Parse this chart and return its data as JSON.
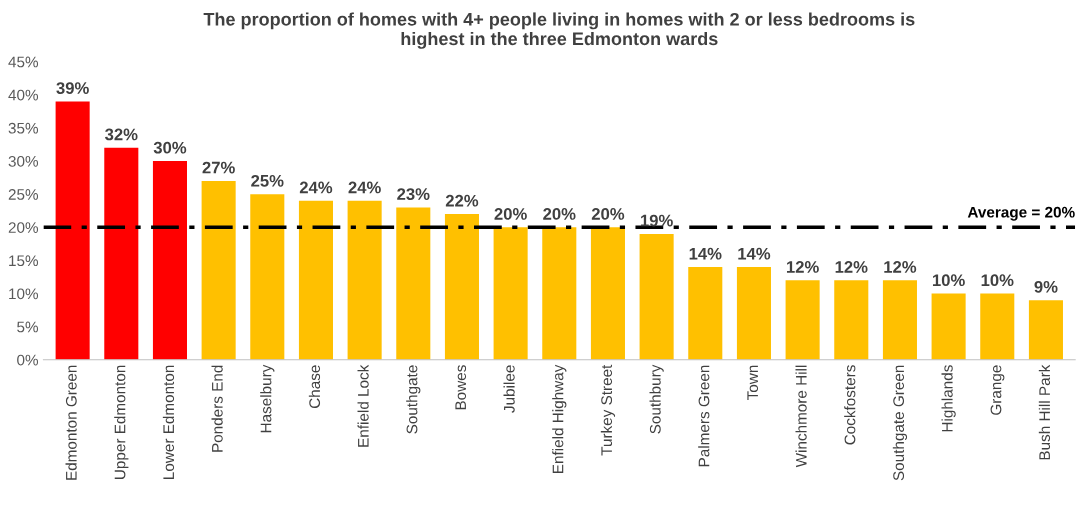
{
  "chart_data": {
    "type": "bar",
    "title": "The proportion of homes with 4+ people living in homes with 2 or less bedrooms is\nhighest in the three Edmonton wards",
    "categories": [
      "Edmonton Green",
      "Upper Edmonton",
      "Lower Edmonton",
      "Ponders End",
      "Haselbury",
      "Chase",
      "Enfield Lock",
      "Southgate",
      "Bowes",
      "Jubilee",
      "Enfield Highway",
      "Turkey Street",
      "Southbury",
      "Palmers Green",
      "Town",
      "Winchmore Hill",
      "Cockfosters",
      "Southgate Green",
      "Highlands",
      "Grange",
      "Bush Hill Park"
    ],
    "values": [
      39,
      32,
      30,
      27,
      25,
      24,
      24,
      23,
      22,
      20,
      20,
      20,
      19,
      14,
      14,
      12,
      12,
      12,
      10,
      10,
      9
    ],
    "value_labels": [
      "39%",
      "32%",
      "30%",
      "27%",
      "25%",
      "24%",
      "24%",
      "23%",
      "22%",
      "20%",
      "20%",
      "20%",
      "19%",
      "14%",
      "14%",
      "12%",
      "12%",
      "12%",
      "10%",
      "10%",
      "9%"
    ],
    "colors": [
      "#ff0000",
      "#ff0000",
      "#ff0000",
      "#ffc000",
      "#ffc000",
      "#ffc000",
      "#ffc000",
      "#ffc000",
      "#ffc000",
      "#ffc000",
      "#ffc000",
      "#ffc000",
      "#ffc000",
      "#ffc000",
      "#ffc000",
      "#ffc000",
      "#ffc000",
      "#ffc000",
      "#ffc000",
      "#ffc000",
      "#ffc000"
    ],
    "ylim": [
      0,
      45
    ],
    "yticks": [
      {
        "value": 0,
        "label": "0%"
      },
      {
        "value": 5,
        "label": "5%"
      },
      {
        "value": 10,
        "label": "10%"
      },
      {
        "value": 15,
        "label": "15%"
      },
      {
        "value": 20,
        "label": "20%"
      },
      {
        "value": 25,
        "label": "25%"
      },
      {
        "value": 30,
        "label": "30%"
      },
      {
        "value": 35,
        "label": "35%"
      },
      {
        "value": 40,
        "label": "40%"
      },
      {
        "value": 45,
        "label": "45%"
      }
    ],
    "ref_lines": [
      {
        "axis": "y",
        "value": 20,
        "label": "Average = 20%",
        "color": "#000000",
        "line_style": "dashdot"
      }
    ],
    "grid": false,
    "legend": false
  }
}
